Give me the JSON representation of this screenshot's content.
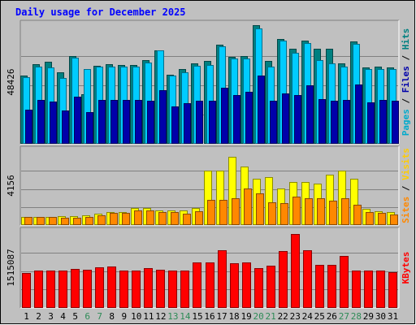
{
  "chart_data": {
    "type": "bar",
    "title": "Daily usage for December 2025",
    "categories": [
      "1",
      "2",
      "3",
      "4",
      "5",
      "6",
      "7",
      "8",
      "9",
      "10",
      "11",
      "12",
      "13",
      "14",
      "15",
      "16",
      "17",
      "18",
      "19",
      "20",
      "21",
      "22",
      "23",
      "24",
      "25",
      "26",
      "27",
      "28",
      "29",
      "30",
      "31"
    ],
    "weekend_days": [
      "6",
      "7",
      "13",
      "14",
      "20",
      "21",
      "27",
      "28"
    ],
    "panels": [
      {
        "id": "top",
        "y_tick_label": "48426",
        "ylim": [
          0,
          48426
        ],
        "right_label": [
          {
            "text": "Pages",
            "color": "#00aacc"
          },
          {
            "text": " / ",
            "color": "#000000"
          },
          {
            "text": "Files",
            "color": "#0000aa"
          },
          {
            "text": " / ",
            "color": "#000000"
          },
          {
            "text": "Hits",
            "color": "#008080"
          }
        ],
        "series": [
          {
            "name": "Hits",
            "color": "#008080",
            "values": [
              28200,
              32800,
              33800,
              29500,
              36200,
              20500,
              32300,
              32800,
              32600,
              32600,
              34500,
              38800,
              28700,
              30800,
              33200,
              34300,
              41000,
              36000,
              36200,
              49100,
              34200,
              43500,
              39300,
              42700,
              39300,
              39300,
              33200,
              42400,
              31600,
              31900,
              31600
            ]
          },
          {
            "name": "Pages",
            "color": "#00ccff",
            "values": [
              27600,
              32100,
              31600,
              27200,
              35800,
              31000,
              31800,
              32100,
              31800,
              31800,
              33600,
              38800,
              28300,
              29600,
              32300,
              32600,
              40200,
              35300,
              35300,
              47600,
              31900,
              42800,
              37600,
              41600,
              34800,
              33200,
              31900,
              41500,
              31100,
              30800,
              31100
            ]
          },
          {
            "name": "Files",
            "color": "#0000aa",
            "values": [
              14000,
              18300,
              17400,
              13800,
              19600,
              13200,
              18000,
              18300,
              18300,
              18300,
              17800,
              22100,
              15400,
              16800,
              17800,
              17700,
              23200,
              20100,
              21600,
              28300,
              17800,
              21000,
              20100,
              24300,
              18500,
              17800,
              18100,
              24700,
              17000,
              18000,
              17900
            ]
          }
        ]
      },
      {
        "id": "middle",
        "y_tick_label": "4156",
        "ylim": [
          0,
          4156
        ],
        "right_label": [
          {
            "text": "Sites",
            "color": "#ff8800"
          },
          {
            "text": " / ",
            "color": "#000000"
          },
          {
            "text": "Visits",
            "color": "#ffcc00"
          }
        ],
        "series": [
          {
            "name": "Visits",
            "color": "#ffff00",
            "values": [
              480,
              480,
              480,
              520,
              520,
              560,
              660,
              760,
              760,
              960,
              960,
              860,
              860,
              860,
              960,
              3150,
              3150,
              3900,
              3380,
              2650,
              2750,
              2100,
              2480,
              2480,
              2380,
              2900,
              3110,
              2680,
              930,
              780,
              730
            ]
          },
          {
            "name": "Sites",
            "color": "#ff8800",
            "values": [
              480,
              480,
              480,
              440,
              440,
              480,
              560,
              680,
              680,
              820,
              820,
              730,
              730,
              640,
              780,
              1430,
              1430,
              1530,
              2080,
              1810,
              1330,
              1260,
              1630,
              1520,
              1530,
              1380,
              1520,
              1190,
              740,
              700,
              620
            ]
          }
        ]
      },
      {
        "id": "bottom",
        "y_tick_label": "1515087",
        "ylim": [
          0,
          1515087
        ],
        "right_label": [
          {
            "text": "KBytes",
            "color": "#ff0000"
          }
        ],
        "series": [
          {
            "name": "KBytes",
            "color": "#ff0000",
            "values": [
              720000,
              760000,
              770000,
              760000,
              800000,
              780000,
              840000,
              850000,
              760000,
              760000,
              820000,
              780000,
              760000,
              770000,
              940000,
              930000,
              1190000,
              920000,
              940000,
              810000,
              860000,
              1170000,
              1515087,
              1190000,
              880000,
              890000,
              1060000,
              770000,
              770000,
              770000,
              730000
            ]
          }
        ]
      }
    ]
  }
}
